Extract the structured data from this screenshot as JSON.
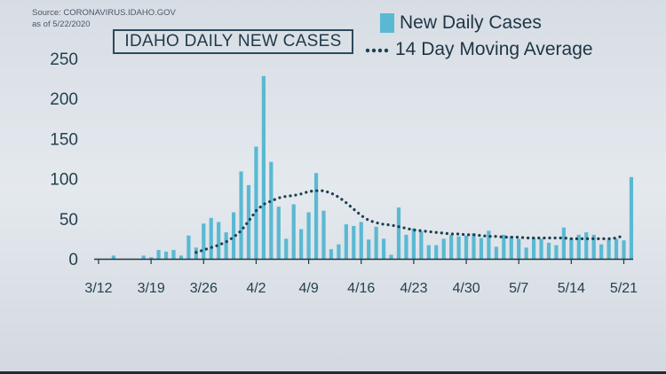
{
  "source": {
    "line1": "Source: CORONAVIRUS.IDAHO.GOV",
    "line2": "as of 5/22/2020"
  },
  "colors": {
    "bar": "#5ab9d2",
    "average": "#1d3f50",
    "axis": "#1f3544"
  },
  "chart_data": {
    "type": "bar",
    "title": "IDAHO DAILY NEW CASES",
    "start_date": "3/12",
    "ylim": [
      0,
      250
    ],
    "yticks": [
      0,
      50,
      100,
      150,
      200,
      250
    ],
    "xtick_labels": [
      "3/12",
      "3/19",
      "3/26",
      "4/2",
      "4/9",
      "4/16",
      "4/23",
      "4/30",
      "5/7",
      "5/14",
      "5/21"
    ],
    "xtick_indices": [
      0,
      7,
      14,
      21,
      28,
      35,
      42,
      49,
      56,
      63,
      70
    ],
    "legend_position": "top-right",
    "series": [
      {
        "name": "New Daily Cases",
        "type": "bar",
        "values": [
          0,
          0,
          4,
          0,
          0,
          0,
          4,
          2,
          11,
          9,
          11,
          4,
          29,
          14,
          44,
          51,
          46,
          33,
          58,
          109,
          92,
          140,
          228,
          121,
          65,
          25,
          68,
          37,
          58,
          107,
          60,
          12,
          18,
          43,
          41,
          46,
          24,
          40,
          25,
          5,
          64,
          30,
          38,
          34,
          17,
          17,
          25,
          30,
          28,
          29,
          32,
          26,
          35,
          15,
          30,
          28,
          25,
          14,
          26,
          25,
          20,
          17,
          39,
          26,
          30,
          33,
          30,
          18,
          24,
          25,
          23,
          102
        ]
      },
      {
        "name": "14 Day Moving Average",
        "type": "line",
        "start_index": 13,
        "values": [
          8,
          11,
          14,
          17,
          21,
          27,
          35,
          47,
          60,
          68,
          72,
          76,
          78,
          79,
          81,
          84,
          85,
          85,
          82,
          77,
          70,
          62,
          54,
          48,
          45,
          43,
          42,
          40,
          38,
          36,
          35,
          34,
          33,
          32,
          31,
          31,
          30,
          30,
          29,
          28,
          28,
          27,
          27,
          27,
          26,
          26,
          26,
          26,
          26,
          26,
          25,
          25,
          25,
          25,
          25,
          25,
          26,
          29
        ]
      }
    ]
  }
}
